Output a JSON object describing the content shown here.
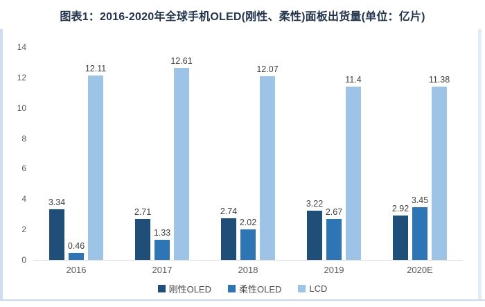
{
  "title": "图表1：2016-2020年全球手机OLED(刚性、柔性)面板出货量(单位：亿片)",
  "colors": {
    "title_text": "#23344d",
    "axis_text": "#595959",
    "value_text": "#404040",
    "baseline": "#d9d9d9",
    "frame": "#c9daee",
    "series_rigid_oled": "#1F4E79",
    "series_flexible_oled": "#2E75B6",
    "series_lcd": "#9DC3E6"
  },
  "chart_data": {
    "type": "bar",
    "title": "图表1：2016-2020年全球手机OLED(刚性、柔性)面板出货量(单位：亿片)",
    "categories": [
      "2016",
      "2017",
      "2018",
      "2019",
      "2020E"
    ],
    "series": [
      {
        "name": "刚性OLED",
        "color": "#1F4E79",
        "values": [
          3.34,
          2.71,
          2.74,
          3.22,
          2.92
        ]
      },
      {
        "name": "柔性OLED",
        "color": "#2E75B6",
        "values": [
          0.46,
          1.33,
          2.02,
          2.67,
          3.45
        ]
      },
      {
        "name": "LCD",
        "color": "#9DC3E6",
        "values": [
          12.11,
          12.61,
          12.07,
          11.4,
          11.38
        ]
      }
    ],
    "xlabel": "",
    "ylabel": "",
    "ylim": [
      0,
      14
    ],
    "yticks": [
      0,
      2,
      4,
      6,
      8,
      10,
      12,
      14
    ],
    "grid": false,
    "data_labels": true,
    "legend_position": "bottom"
  }
}
